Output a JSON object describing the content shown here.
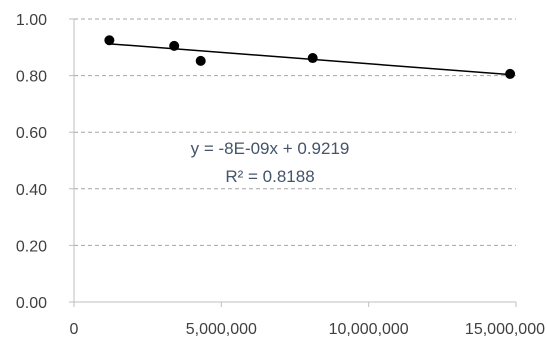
{
  "chart_data": {
    "type": "scatter",
    "title": "",
    "xlabel": "",
    "ylabel": "",
    "xlim": [
      0,
      15000000
    ],
    "ylim": [
      0,
      1.0
    ],
    "x_ticks": [
      0,
      5000000,
      10000000,
      15000000
    ],
    "x_tick_labels": [
      "0",
      "5,000,000",
      "10,000,000",
      "15,000,000"
    ],
    "y_ticks": [
      0,
      0.2,
      0.4,
      0.6,
      0.8,
      1.0
    ],
    "y_tick_labels": [
      "0.00",
      "0.20",
      "0.40",
      "0.60",
      "0.80",
      "1.00"
    ],
    "grid": "horizontal-dashed",
    "legend": "none",
    "series": [
      {
        "points": [
          {
            "x": 1200000,
            "y": 0.925
          },
          {
            "x": 3400000,
            "y": 0.905
          },
          {
            "x": 4300000,
            "y": 0.852
          },
          {
            "x": 8100000,
            "y": 0.862
          },
          {
            "x": 14800000,
            "y": 0.806
          }
        ],
        "color": "#000000"
      }
    ],
    "trendline": {
      "type": "linear",
      "slope": -8e-09,
      "intercept": 0.9219,
      "color": "#000000",
      "equation_label": "y = -8E-09x + 0.9219",
      "r2_label": "R² = 0.8188"
    },
    "colors": {
      "axis": "#BFBFBF",
      "grid": "#A6A6A6",
      "tick_text": "#404040",
      "equation_text": "#44546A"
    }
  }
}
